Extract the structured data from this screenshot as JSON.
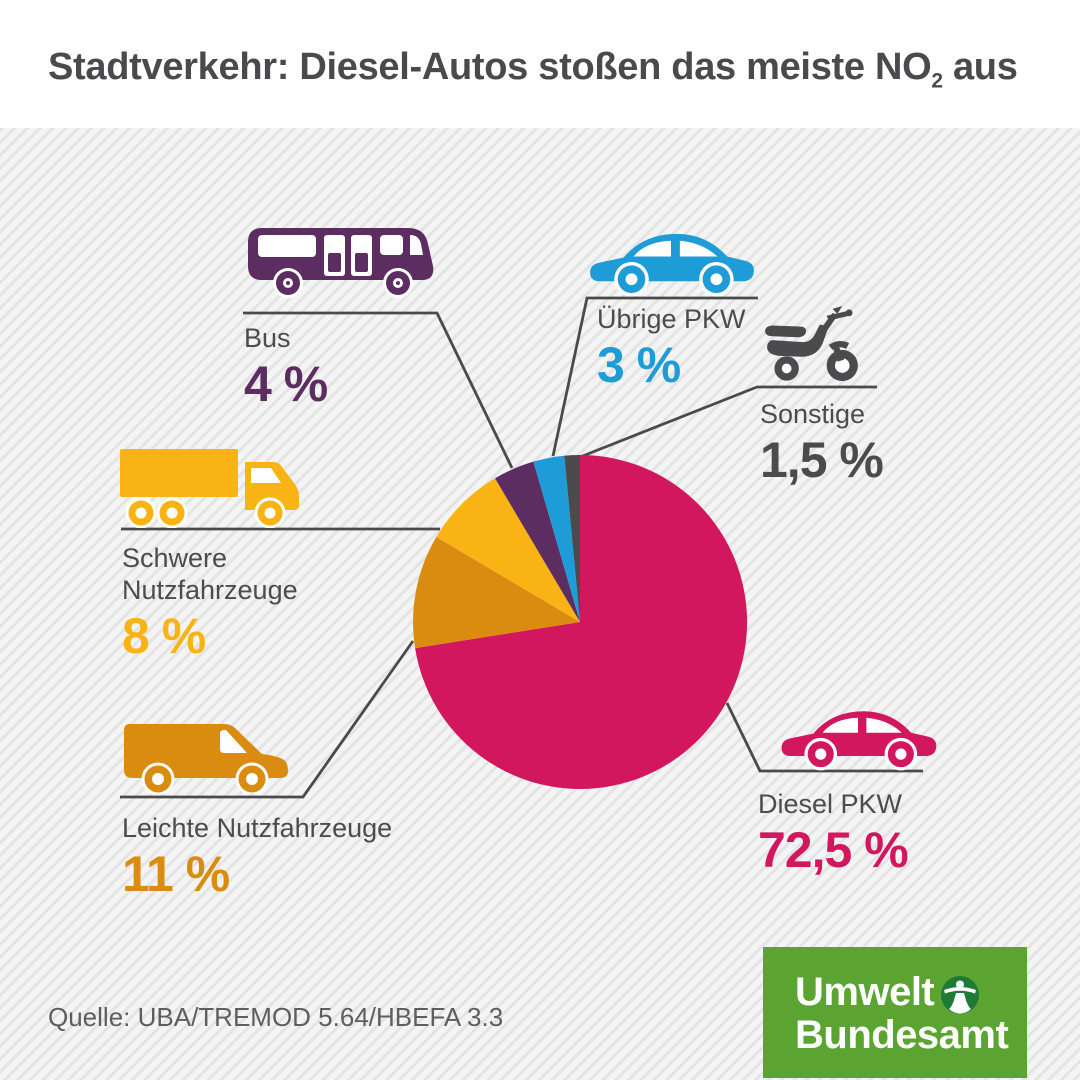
{
  "header": {
    "title_prefix": "Stadtverkehr: Diesel-Autos stoßen das meiste NO",
    "title_subscript": "2",
    "title_suffix": " aus"
  },
  "footer": {
    "source": "Quelle: UBA/TREMOD 5.64/HBEFA 3.3"
  },
  "logo": {
    "line1": "Umwelt",
    "line2": "Bundesamt",
    "box_color": "#5BA431",
    "emblem_color": "#1E7B35"
  },
  "chart_data": {
    "type": "pie",
    "title": "Stadtverkehr: Diesel-Autos stoßen das meiste NO2 aus",
    "unit": "percent",
    "start_angle_deg": 0,
    "direction": "clockwise",
    "legend_position": "callouts-around-pie",
    "segments": [
      {
        "label": "Diesel PKW",
        "value": 72.5,
        "value_text": "72,5 %",
        "color": "#D2175F",
        "icon": "car-icon"
      },
      {
        "label": "Leichte Nutzfahrzeuge",
        "value": 11,
        "value_text": "11 %",
        "color": "#D98C10",
        "icon": "van-icon"
      },
      {
        "label": "Schwere Nutzfahrzeuge",
        "value": 8,
        "value_text": "8 %",
        "color": "#F9B314",
        "icon": "truck-icon"
      },
      {
        "label": "Bus",
        "value": 4,
        "value_text": "4 %",
        "color": "#5C2D61",
        "icon": "bus-icon"
      },
      {
        "label": "Übrige PKW",
        "value": 3,
        "value_text": "3 %",
        "color": "#1E9CD8",
        "icon": "car-icon"
      },
      {
        "label": "Sonstige",
        "value": 1.5,
        "value_text": "1,5 %",
        "color": "#4B4B4D",
        "icon": "scooter-icon"
      }
    ]
  }
}
